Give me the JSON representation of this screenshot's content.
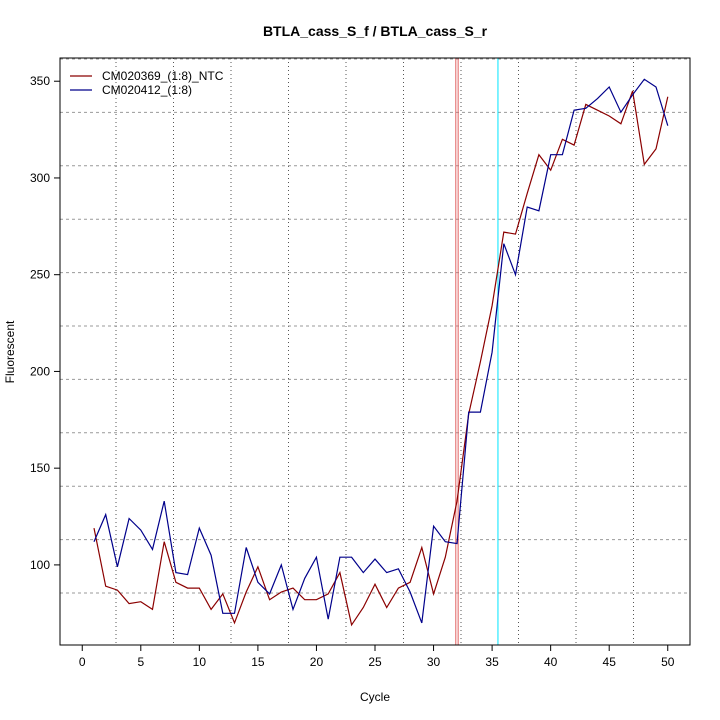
{
  "chart_data": {
    "type": "line",
    "title": "BTLA_cass_S_f / BTLA_cass_S_r",
    "xlabel": "Cycle",
    "ylabel": "Fluorescent",
    "xlim": [
      -1.9,
      51.9
    ],
    "ylim": [
      58.6,
      362
    ],
    "xticks": [
      0,
      5,
      10,
      15,
      20,
      25,
      30,
      35,
      40,
      45,
      50
    ],
    "yticks": [
      100,
      150,
      200,
      250,
      300,
      350
    ],
    "grid": true,
    "legend_position": "top-left",
    "threshold_lines": [
      {
        "x": 31.9,
        "color": "#e06060"
      },
      {
        "x": 32.1,
        "color": "#e06060"
      },
      {
        "x": 35.5,
        "color": "#00e5ff"
      }
    ],
    "x": [
      1,
      2,
      3,
      4,
      5,
      6,
      7,
      8,
      9,
      10,
      11,
      12,
      13,
      14,
      15,
      16,
      17,
      18,
      19,
      20,
      21,
      22,
      23,
      24,
      25,
      26,
      27,
      28,
      29,
      30,
      31,
      32,
      33,
      34,
      35,
      36,
      37,
      38,
      39,
      40,
      41,
      42,
      43,
      44,
      45,
      46,
      47,
      48,
      49,
      50
    ],
    "series": [
      {
        "name": "CM020369_(1:8)_NTC",
        "color": "#8b0000",
        "values": [
          119,
          89,
          87,
          80,
          81,
          77,
          112,
          91,
          88,
          88,
          77,
          85,
          70,
          86,
          99,
          82,
          86,
          88,
          82,
          82,
          85,
          96,
          69,
          78,
          90,
          78,
          88,
          91,
          109,
          85,
          104,
          133,
          178,
          205,
          234,
          272,
          271,
          292,
          312,
          304,
          320,
          317,
          338,
          335,
          332,
          328,
          345,
          307,
          315,
          342
        ]
      },
      {
        "name": "CM020412_(1:8)",
        "color": "#00008b",
        "values": [
          112,
          126,
          99,
          124,
          118,
          108,
          133,
          96,
          95,
          119,
          105,
          75,
          75,
          109,
          91,
          85,
          100,
          77,
          93,
          104,
          72,
          104,
          104,
          96,
          103,
          96,
          98,
          86,
          70,
          120,
          112,
          111,
          179,
          179,
          210,
          266,
          250,
          285,
          283,
          312,
          312,
          335,
          336,
          341,
          347,
          334,
          343,
          351,
          347,
          327
        ]
      }
    ]
  }
}
